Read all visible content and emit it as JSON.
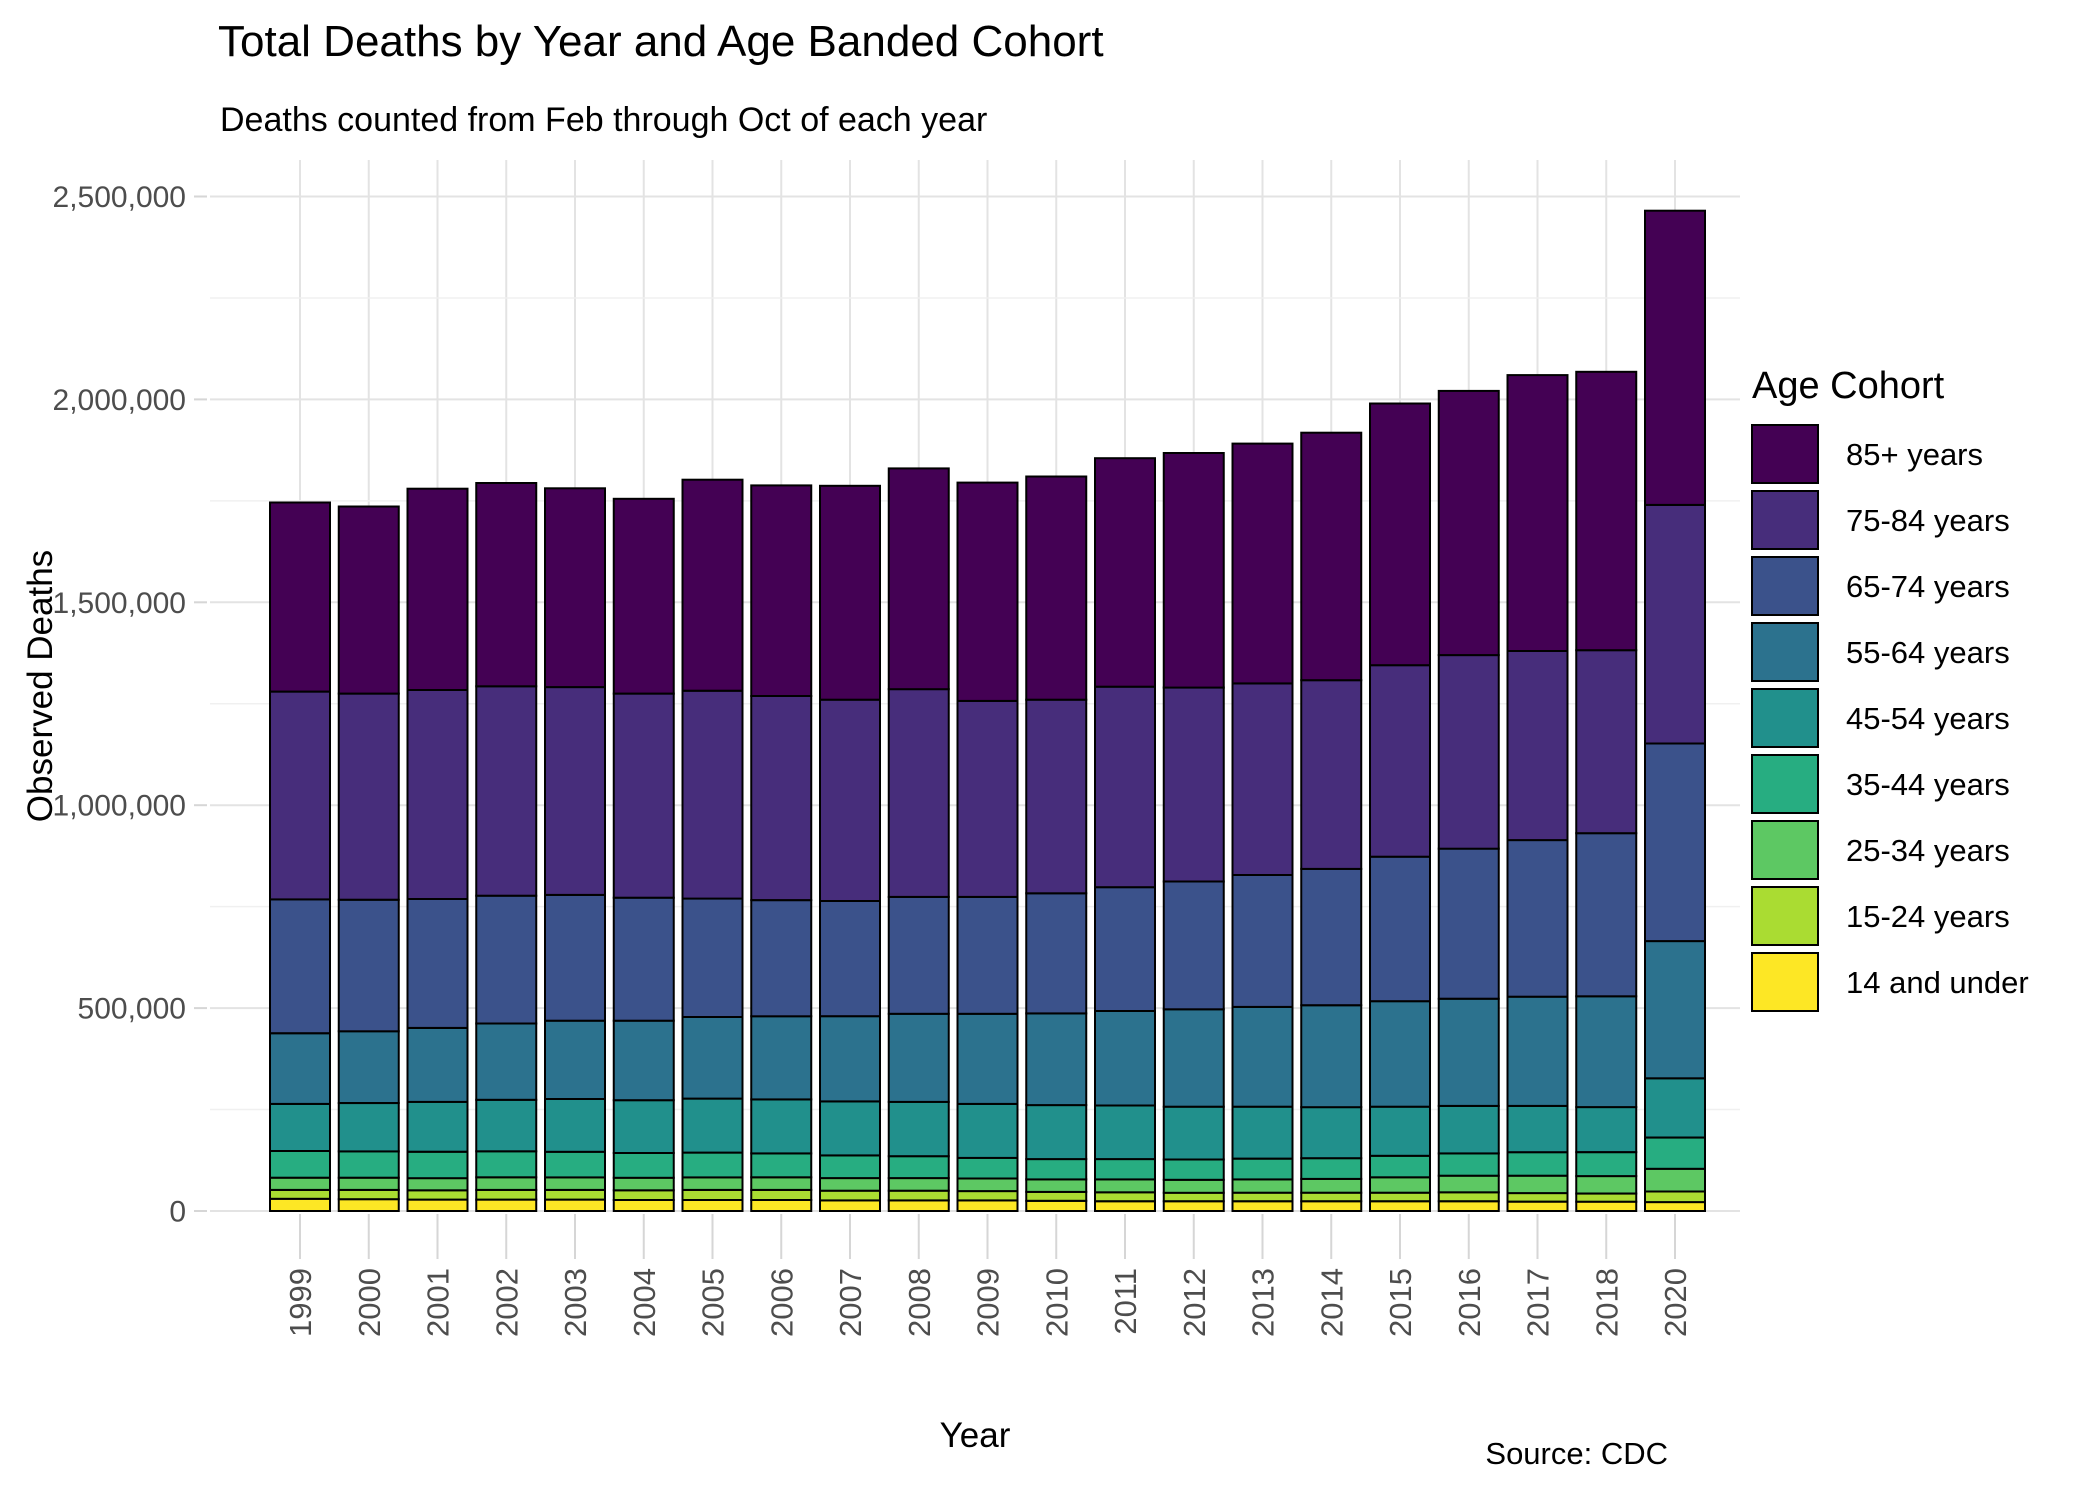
{
  "title": "Total Deaths by Year and Age Banded Cohort",
  "subtitle": "Deaths counted from Feb through Oct of each year",
  "caption": "Source: CDC",
  "chart_data": {
    "type": "bar",
    "stacked": true,
    "title": "Total Deaths by Year and Age Banded Cohort",
    "subtitle": "Deaths counted from Feb through Oct of each year",
    "xlabel": "Year",
    "ylabel": "Observed Deaths",
    "legend_title": "Age Cohort",
    "legend_position": "right",
    "grid": "horizontal major+minor, vertical major per category",
    "ylim": [
      0,
      2550000
    ],
    "y_major_step": 500000,
    "y_minor_step": 250000,
    "y_ticks": [
      {
        "value": 0,
        "label": "0"
      },
      {
        "value": 500000,
        "label": "500,000"
      },
      {
        "value": 1000000,
        "label": "1,000,000"
      },
      {
        "value": 1500000,
        "label": "1,500,000"
      },
      {
        "value": 2000000,
        "label": "2,000,000"
      },
      {
        "value": 2500000,
        "label": "2,500,000"
      }
    ],
    "categories": [
      "1999",
      "2000",
      "2001",
      "2002",
      "2003",
      "2004",
      "2005",
      "2006",
      "2007",
      "2008",
      "2009",
      "2010",
      "2011",
      "2012",
      "2013",
      "2014",
      "2015",
      "2016",
      "2017",
      "2018",
      "2020"
    ],
    "bar_border_color": "#000000",
    "series": [
      {
        "name": "85+ years",
        "color": "#440154",
        "values": [
          466000,
          461000,
          496000,
          501000,
          490000,
          480000,
          520000,
          519000,
          527000,
          544000,
          538000,
          550000,
          563000,
          578000,
          591000,
          610000,
          645000,
          651000,
          680000,
          686000,
          725000
        ]
      },
      {
        "name": "75-84 years",
        "color": "#472D7B",
        "values": [
          512000,
          508000,
          515000,
          516000,
          512000,
          503000,
          512000,
          503000,
          496000,
          512000,
          483000,
          477000,
          494000,
          478000,
          472000,
          465000,
          472000,
          477000,
          466000,
          451000,
          588000
        ]
      },
      {
        "name": "65-74 years",
        "color": "#3B528B",
        "values": [
          330000,
          324000,
          318000,
          315000,
          310000,
          303000,
          292000,
          286000,
          284000,
          288000,
          288000,
          296000,
          305000,
          315000,
          325000,
          336000,
          356000,
          370000,
          386000,
          402000,
          487000
        ]
      },
      {
        "name": "55-64 years",
        "color": "#2C728E",
        "values": [
          174000,
          177000,
          182000,
          188000,
          193000,
          196000,
          201000,
          205000,
          210000,
          217000,
          222000,
          226000,
          233000,
          240000,
          246000,
          251000,
          260000,
          264000,
          269000,
          273000,
          338000
        ]
      },
      {
        "name": "45-54 years",
        "color": "#21908C",
        "values": [
          116000,
          119000,
          123000,
          127000,
          130000,
          130000,
          133000,
          133000,
          133000,
          134000,
          133000,
          133000,
          132000,
          130000,
          128000,
          126000,
          121000,
          117000,
          114000,
          111000,
          146000
        ]
      },
      {
        "name": "35-44 years",
        "color": "#27AD81",
        "values": [
          66000,
          65000,
          65000,
          64000,
          63000,
          61000,
          61000,
          59000,
          56000,
          54000,
          51000,
          50000,
          50000,
          50000,
          51000,
          51000,
          53000,
          55000,
          58000,
          59000,
          77000
        ]
      },
      {
        "name": "25-34 years",
        "color": "#5DC863",
        "values": [
          30000,
          30000,
          30000,
          31000,
          31000,
          31000,
          31000,
          31000,
          31000,
          31000,
          31000,
          31000,
          32000,
          32000,
          33000,
          34000,
          38000,
          41000,
          43000,
          43000,
          56000
        ]
      },
      {
        "name": "15-24 years",
        "color": "#AADC32",
        "values": [
          22000,
          23000,
          23000,
          24000,
          24000,
          24000,
          25000,
          25000,
          24000,
          24000,
          23000,
          22000,
          22000,
          21000,
          21000,
          21000,
          21000,
          22000,
          21000,
          20000,
          26000
        ]
      },
      {
        "name": "14 and under",
        "color": "#FDE725",
        "values": [
          30000,
          29000,
          28000,
          28000,
          28000,
          27000,
          27000,
          27000,
          26000,
          26000,
          26000,
          25000,
          24000,
          24000,
          24000,
          24000,
          24000,
          24000,
          23000,
          23000,
          22000
        ]
      }
    ]
  }
}
